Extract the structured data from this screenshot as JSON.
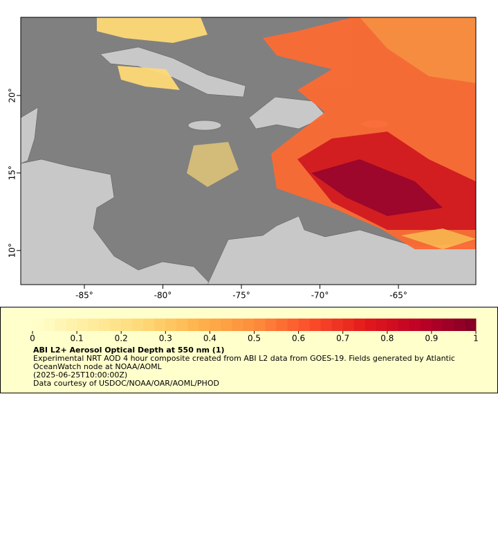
{
  "map": {
    "xlim": [
      -89.05,
      -60.07
    ],
    "ylim": [
      7.8,
      25.04
    ],
    "xticks": [
      {
        "value": -85,
        "label": "-85°"
      },
      {
        "value": -80,
        "label": "-80°"
      },
      {
        "value": -75,
        "label": "-75°"
      },
      {
        "value": -70,
        "label": "-70°"
      },
      {
        "value": -65,
        "label": "-65°"
      }
    ],
    "yticks": [
      {
        "value": 10,
        "label": "10°"
      },
      {
        "value": 15,
        "label": "15°"
      },
      {
        "value": 20,
        "label": "20°"
      }
    ],
    "ocean_color": "#808080",
    "land_color": "#c8c8c8"
  },
  "colorbar": {
    "lim": [
      0,
      1
    ],
    "ticks": [
      0,
      0.1,
      0.2,
      0.3,
      0.4,
      0.5,
      0.6,
      0.7,
      0.8,
      0.9,
      1
    ],
    "colors": [
      "#ffffcc",
      "#ffeda0",
      "#fed976",
      "#feb24c",
      "#fd8d3c",
      "#fc4e2a",
      "#e31a1c",
      "#bd0026",
      "#800026"
    ]
  },
  "legend": {
    "title": "ABI L2+ Aerosol Optical Depth at 550 nm (1)",
    "description": "Experimental NRT AOD 4 hour composite created from ABI L2 data from GOES-19. Fields generated by Atlantic OceanWatch node at NOAA/AOML",
    "time": "(2025-06-25T10:00:00Z)",
    "credit": "Data courtesy of USDOC/NOAA/OAR/AOML/PHOD"
  }
}
